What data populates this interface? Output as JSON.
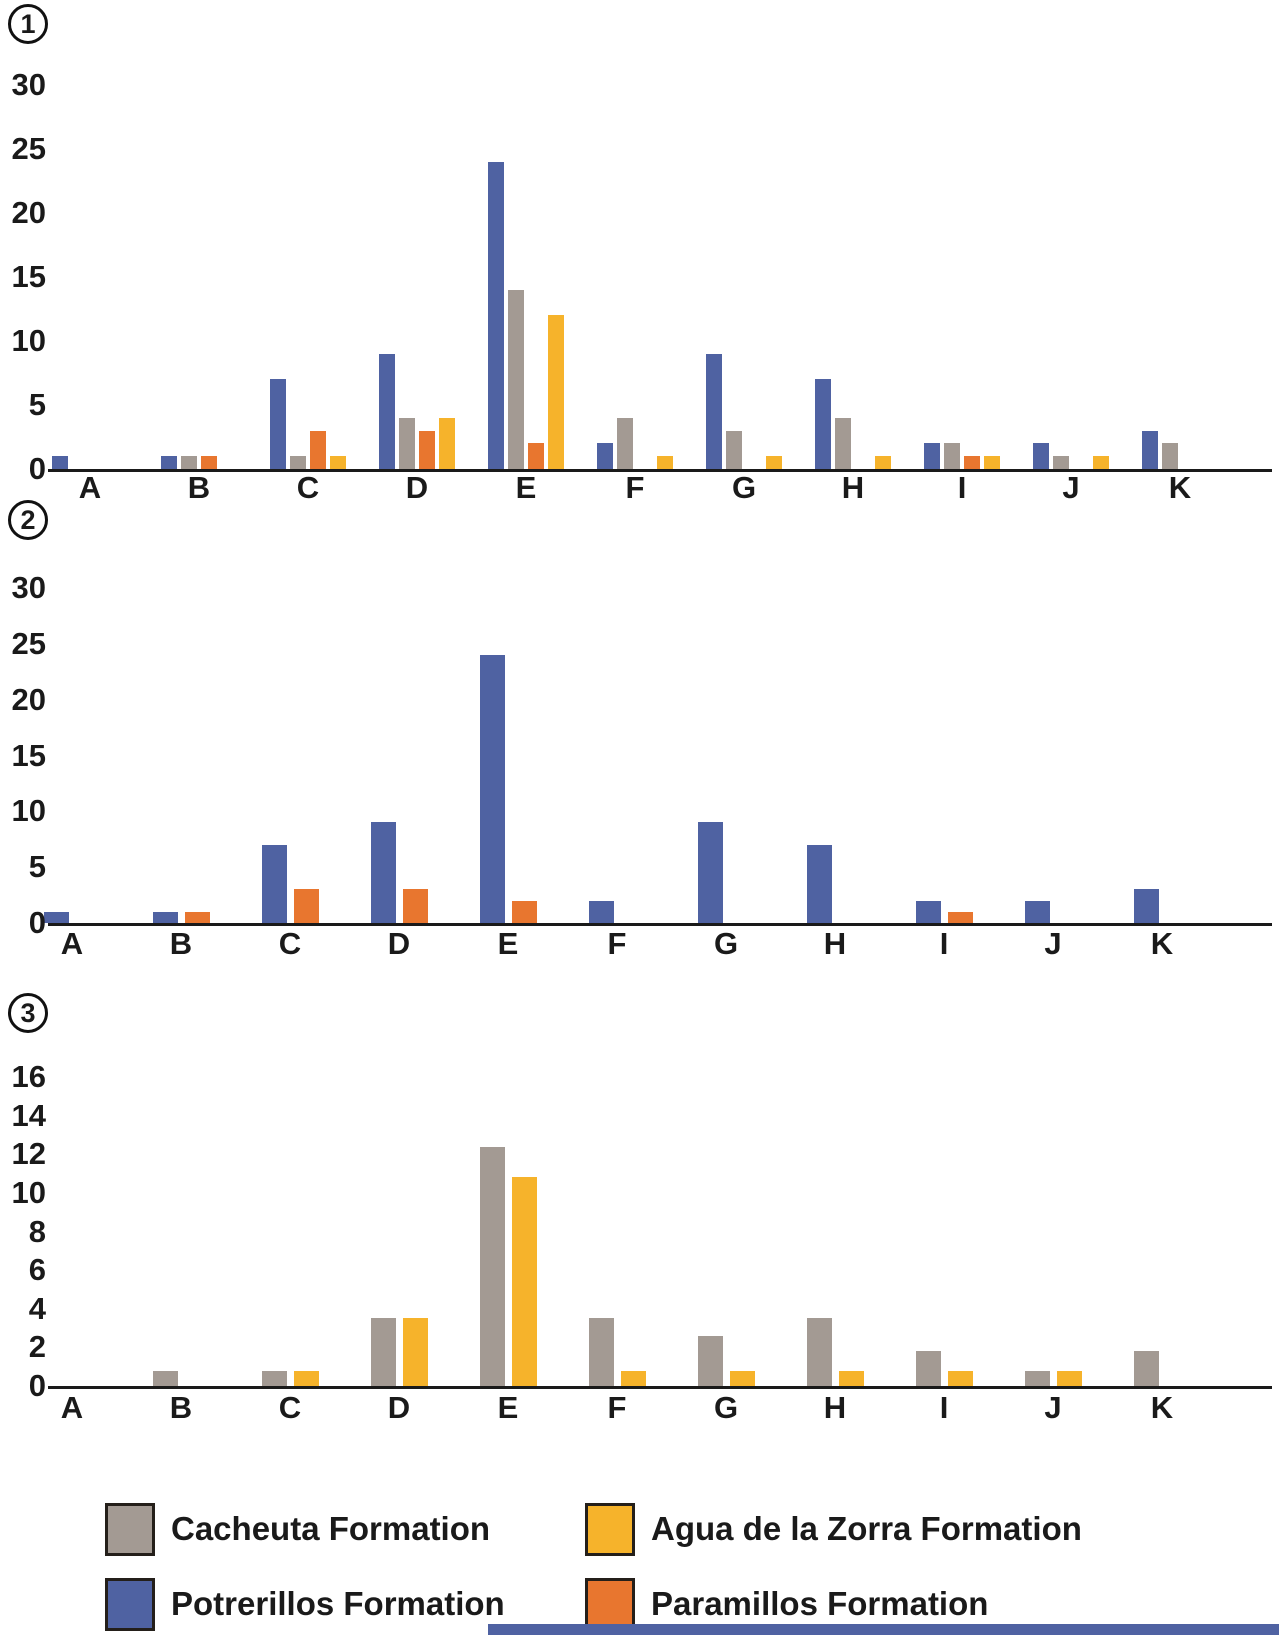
{
  "figure_type": "three-panel grouped bar chart figure",
  "colors": {
    "potrerillos_blue": "#4f62a2",
    "cacheuta_gray": "#a39a93",
    "paramillos_orange": "#e8762f",
    "agua_yellow": "#f6b32b",
    "axis": "#1a1a1a"
  },
  "chart_data": [
    {
      "type": "bar",
      "panel_label": "1",
      "title": "",
      "xlabel": "",
      "ylabel": "",
      "grid": false,
      "legend_position": "bottom",
      "categories": [
        "A",
        "B",
        "C",
        "D",
        "E",
        "F",
        "G",
        "H",
        "I",
        "J",
        "K"
      ],
      "ylim": [
        0,
        30
      ],
      "yticks": [
        0,
        5,
        10,
        15,
        20,
        25,
        30
      ],
      "series": [
        {
          "key": "potrerillos",
          "name": "Potrerillos Formation",
          "color": "#4f62a2",
          "values": [
            1,
            1,
            7,
            9,
            24,
            2,
            9,
            7,
            2,
            2,
            3
          ]
        },
        {
          "key": "cacheuta",
          "name": "Cacheuta Formation",
          "color": "#a39a93",
          "values": [
            0,
            1,
            1,
            4,
            14,
            4,
            3,
            4,
            2,
            1,
            2
          ]
        },
        {
          "key": "paramillos",
          "name": "Paramillos Formation",
          "color": "#e8762f",
          "values": [
            0,
            1,
            3,
            3,
            2,
            0,
            0,
            0,
            1,
            0,
            0
          ]
        },
        {
          "key": "agua",
          "name": "Agua de la Zorra Formation",
          "color": "#f6b32b",
          "values": [
            0,
            0,
            1,
            4,
            12,
            1,
            1,
            1,
            1,
            1,
            0
          ]
        }
      ]
    },
    {
      "type": "bar",
      "panel_label": "2",
      "title": "",
      "xlabel": "",
      "ylabel": "",
      "grid": false,
      "categories": [
        "A",
        "B",
        "C",
        "D",
        "E",
        "F",
        "G",
        "H",
        "I",
        "J",
        "K"
      ],
      "ylim": [
        0,
        30
      ],
      "yticks": [
        0,
        5,
        10,
        15,
        20,
        25,
        30
      ],
      "series": [
        {
          "key": "potrerillos",
          "name": "Potrerillos Formation",
          "color": "#4f62a2",
          "values": [
            1,
            1,
            7,
            9,
            24,
            2,
            9,
            7,
            2,
            2,
            3
          ]
        },
        {
          "key": "paramillos",
          "name": "Paramillos Formation",
          "color": "#e8762f",
          "values": [
            0,
            1,
            3,
            3,
            2,
            0,
            0,
            0,
            1,
            0,
            0
          ]
        }
      ]
    },
    {
      "type": "bar",
      "panel_label": "3",
      "title": "",
      "xlabel": "",
      "ylabel": "",
      "grid": false,
      "categories": [
        "A",
        "B",
        "C",
        "D",
        "E",
        "F",
        "G",
        "H",
        "I",
        "J",
        "K"
      ],
      "ylim": [
        0,
        16
      ],
      "yticks": [
        0,
        2,
        4,
        6,
        8,
        10,
        12,
        14,
        16
      ],
      "series": [
        {
          "key": "cacheuta",
          "name": "Cacheuta Formation",
          "color": "#a39a93",
          "values": [
            0,
            0.8,
            0.8,
            3.5,
            12.4,
            3.5,
            2.6,
            3.5,
            1.8,
            0.8,
            1.8
          ]
        },
        {
          "key": "agua",
          "name": "Agua de la Zorra Formation",
          "color": "#f6b32b",
          "values": [
            0,
            0,
            0.8,
            3.5,
            10.8,
            0.8,
            0.8,
            0.8,
            0.8,
            0.8,
            0
          ]
        }
      ]
    }
  ],
  "legend": {
    "items": [
      {
        "label": "Cacheuta Formation",
        "color": "#a39a93"
      },
      {
        "label": "Agua de la Zorra Formation",
        "color": "#f6b32b"
      },
      {
        "label": "Potrerillos Formation",
        "color": "#4f62a2"
      },
      {
        "label": "Paramillos Formation",
        "color": "#e8762f"
      }
    ]
  },
  "decor": {
    "bottom_strip_color": "#4f62a2"
  }
}
